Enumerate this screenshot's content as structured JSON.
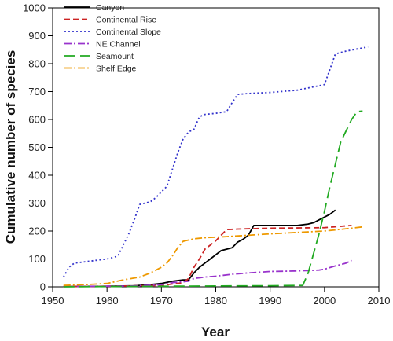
{
  "chart_data": {
    "type": "line",
    "title": "",
    "xlabel": "Year",
    "ylabel": "Cumulative number of species",
    "xlim": [
      1950,
      2010
    ],
    "ylim": [
      0,
      1000
    ],
    "xticks": [
      1950,
      1960,
      1970,
      1980,
      1990,
      2000,
      2010
    ],
    "yticks": [
      0,
      100,
      200,
      300,
      400,
      500,
      600,
      700,
      800,
      900,
      1000
    ],
    "grid": false,
    "legend_position": "top-left",
    "series": [
      {
        "name": "Canyon",
        "color": "#000000",
        "style": "solid",
        "points": [
          [
            1952,
            1
          ],
          [
            1960,
            2
          ],
          [
            1965,
            4
          ],
          [
            1968,
            8
          ],
          [
            1970,
            12
          ],
          [
            1972,
            20
          ],
          [
            1974,
            25
          ],
          [
            1975,
            25
          ],
          [
            1976,
            50
          ],
          [
            1977,
            70
          ],
          [
            1978,
            85
          ],
          [
            1979,
            100
          ],
          [
            1980,
            115
          ],
          [
            1981,
            130
          ],
          [
            1982,
            135
          ],
          [
            1983,
            140
          ],
          [
            1984,
            160
          ],
          [
            1985,
            170
          ],
          [
            1986,
            185
          ],
          [
            1987,
            220
          ],
          [
            1988,
            220
          ],
          [
            1990,
            220
          ],
          [
            1995,
            220
          ],
          [
            1997,
            225
          ],
          [
            1998,
            230
          ],
          [
            1999,
            240
          ],
          [
            2000,
            250
          ],
          [
            2001,
            260
          ],
          [
            2002,
            275
          ]
        ]
      },
      {
        "name": "Continental Rise",
        "color": "#cc2222",
        "style": "dashed",
        "points": [
          [
            1952,
            1
          ],
          [
            1960,
            2
          ],
          [
            1970,
            5
          ],
          [
            1974,
            15
          ],
          [
            1975,
            30
          ],
          [
            1976,
            70
          ],
          [
            1977,
            100
          ],
          [
            1978,
            135
          ],
          [
            1979,
            150
          ],
          [
            1980,
            165
          ],
          [
            1981,
            185
          ],
          [
            1982,
            205
          ],
          [
            1984,
            207
          ],
          [
            1990,
            210
          ],
          [
            2000,
            212
          ],
          [
            2005,
            220
          ]
        ]
      },
      {
        "name": "Continental Slope",
        "color": "#3333cc",
        "style": "dotted",
        "points": [
          [
            1952,
            35
          ],
          [
            1953,
            70
          ],
          [
            1954,
            85
          ],
          [
            1956,
            90
          ],
          [
            1958,
            95
          ],
          [
            1960,
            100
          ],
          [
            1962,
            110
          ],
          [
            1963,
            150
          ],
          [
            1964,
            190
          ],
          [
            1965,
            240
          ],
          [
            1966,
            295
          ],
          [
            1967,
            300
          ],
          [
            1968,
            305
          ],
          [
            1969,
            320
          ],
          [
            1970,
            340
          ],
          [
            1971,
            360
          ],
          [
            1972,
            420
          ],
          [
            1973,
            480
          ],
          [
            1974,
            530
          ],
          [
            1975,
            555
          ],
          [
            1976,
            565
          ],
          [
            1977,
            610
          ],
          [
            1978,
            618
          ],
          [
            1980,
            622
          ],
          [
            1982,
            628
          ],
          [
            1983,
            660
          ],
          [
            1984,
            690
          ],
          [
            1986,
            693
          ],
          [
            1990,
            697
          ],
          [
            1995,
            705
          ],
          [
            2000,
            725
          ],
          [
            2001,
            780
          ],
          [
            2002,
            835
          ],
          [
            2004,
            845
          ],
          [
            2008,
            860
          ]
        ]
      },
      {
        "name": "NE Channel",
        "color": "#9933cc",
        "style": "dashdot",
        "points": [
          [
            1952,
            1
          ],
          [
            1965,
            3
          ],
          [
            1970,
            8
          ],
          [
            1972,
            15
          ],
          [
            1975,
            20
          ],
          [
            1976,
            30
          ],
          [
            1978,
            35
          ],
          [
            1980,
            38
          ],
          [
            1983,
            45
          ],
          [
            1986,
            50
          ],
          [
            1990,
            55
          ],
          [
            1995,
            57
          ],
          [
            1999,
            60
          ],
          [
            2000,
            63
          ],
          [
            2002,
            75
          ],
          [
            2004,
            85
          ],
          [
            2005,
            95
          ]
        ]
      },
      {
        "name": "Seamount",
        "color": "#22aa22",
        "style": "longdash",
        "points": [
          [
            1952,
            0
          ],
          [
            1960,
            1
          ],
          [
            1970,
            2
          ],
          [
            1980,
            3
          ],
          [
            1990,
            4
          ],
          [
            1996,
            5
          ],
          [
            1997,
            50
          ],
          [
            1998,
            120
          ],
          [
            1999,
            190
          ],
          [
            2000,
            270
          ],
          [
            2001,
            360
          ],
          [
            2002,
            440
          ],
          [
            2003,
            520
          ],
          [
            2004,
            560
          ],
          [
            2005,
            600
          ],
          [
            2006,
            628
          ],
          [
            2007,
            630
          ]
        ]
      },
      {
        "name": "Shelf Edge",
        "color": "#ee9900",
        "style": "dashdot",
        "points": [
          [
            1952,
            5
          ],
          [
            1956,
            8
          ],
          [
            1960,
            12
          ],
          [
            1963,
            25
          ],
          [
            1966,
            35
          ],
          [
            1968,
            50
          ],
          [
            1970,
            70
          ],
          [
            1971,
            85
          ],
          [
            1972,
            110
          ],
          [
            1973,
            140
          ],
          [
            1974,
            163
          ],
          [
            1976,
            172
          ],
          [
            1978,
            176
          ],
          [
            1982,
            180
          ],
          [
            1990,
            190
          ],
          [
            2000,
            200
          ],
          [
            2005,
            210
          ],
          [
            2007,
            215
          ]
        ]
      }
    ]
  }
}
